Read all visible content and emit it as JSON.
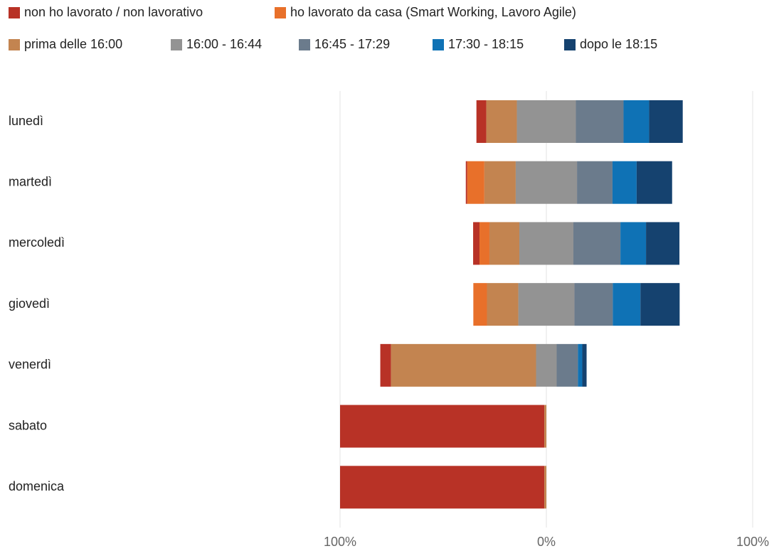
{
  "chart_data": {
    "type": "diverging_bar",
    "orientation": "horizontal",
    "categories": [
      "lunedì",
      "martedì",
      "mercoledì",
      "giovedì",
      "venerdì",
      "sabato",
      "domenica"
    ],
    "series": [
      {
        "name": "non ho lavorato / non lavorativo",
        "color": "#b83226",
        "values": [
          4.8,
          0.7,
          3.1,
          0,
          5.2,
          99,
          99
        ]
      },
      {
        "name": "ho lavorato da casa (Smart Working, Lavoro Agile)",
        "color": "#e8702a",
        "values": [
          0,
          8.3,
          4.8,
          6.6,
          0,
          0,
          0
        ]
      },
      {
        "name": "prima delle 16:00",
        "color": "#c38450",
        "values": [
          14.8,
          15.2,
          14.5,
          15.2,
          70.3,
          1,
          1
        ]
      },
      {
        "name": "16:00 - 16:44",
        "color": "#939393",
        "values": [
          28.6,
          29.7,
          26.2,
          27.2,
          10,
          0,
          0
        ]
      },
      {
        "name": "16:45 - 17:29",
        "color": "#6b7b8c",
        "values": [
          23.1,
          17.2,
          22.8,
          18.6,
          10.3,
          0,
          0
        ]
      },
      {
        "name": "17:30 - 18:15",
        "color": "#0f72b5",
        "values": [
          12.4,
          11.7,
          12.4,
          13.4,
          2.1,
          0,
          0
        ]
      },
      {
        "name": "dopo le 18:15",
        "color": "#15426f",
        "values": [
          16.3,
          17.2,
          16.2,
          19.0,
          2.1,
          0,
          0
        ]
      }
    ],
    "neutral_series": 3,
    "xlim": [
      -100,
      100
    ],
    "xticks": [
      {
        "value": -100,
        "label": "100%"
      },
      {
        "value": 0,
        "label": "0%"
      },
      {
        "value": 100,
        "label": "100%"
      }
    ],
    "grid": true
  }
}
